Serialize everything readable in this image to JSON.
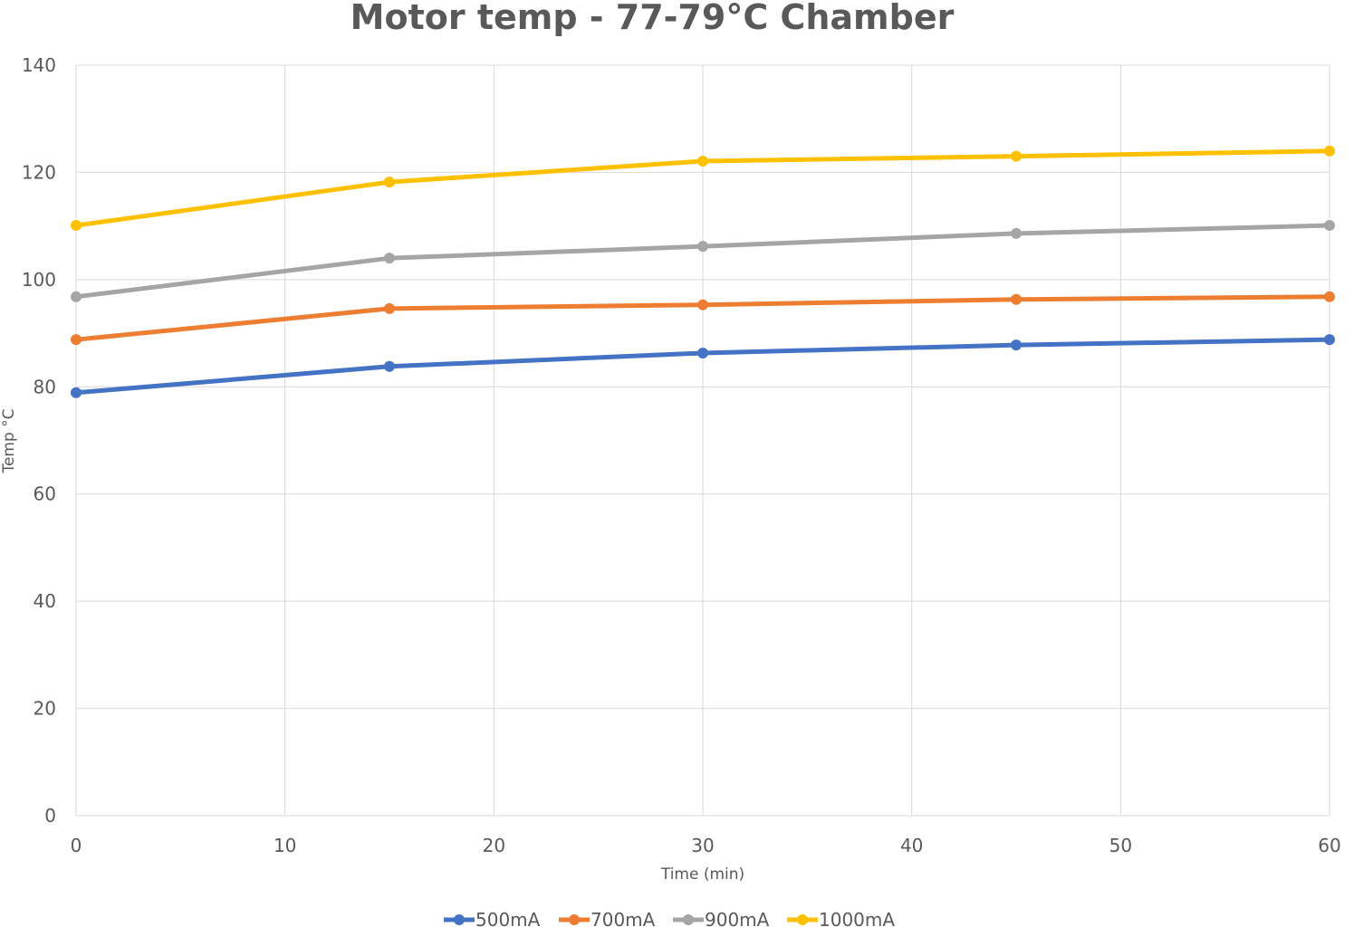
{
  "chart_data": {
    "type": "line",
    "title": "Motor temp - 77-79°C Chamber",
    "xlabel": "Time (min)",
    "ylabel": "Temp °C",
    "xlim": [
      0,
      60
    ],
    "ylim": [
      0,
      140
    ],
    "xticks": [
      0,
      10,
      20,
      30,
      40,
      50,
      60
    ],
    "yticks": [
      0,
      20,
      40,
      60,
      80,
      100,
      120,
      140
    ],
    "grid": true,
    "legend_position": "bottom",
    "x": [
      0,
      15,
      30,
      45,
      60
    ],
    "series": [
      {
        "name": "500mA",
        "color": "#4472C4",
        "values": [
          78.9,
          83.8,
          86.3,
          87.8,
          88.8
        ]
      },
      {
        "name": "700mA",
        "color": "#ED7D31",
        "values": [
          88.8,
          94.6,
          95.3,
          96.3,
          96.8
        ]
      },
      {
        "name": "900mA",
        "color": "#A5A5A5",
        "values": [
          96.8,
          104.0,
          106.2,
          108.6,
          110.1
        ]
      },
      {
        "name": "1000mA",
        "color": "#FFC000",
        "values": [
          110.1,
          118.2,
          122.1,
          123.0,
          124.0
        ]
      }
    ]
  }
}
